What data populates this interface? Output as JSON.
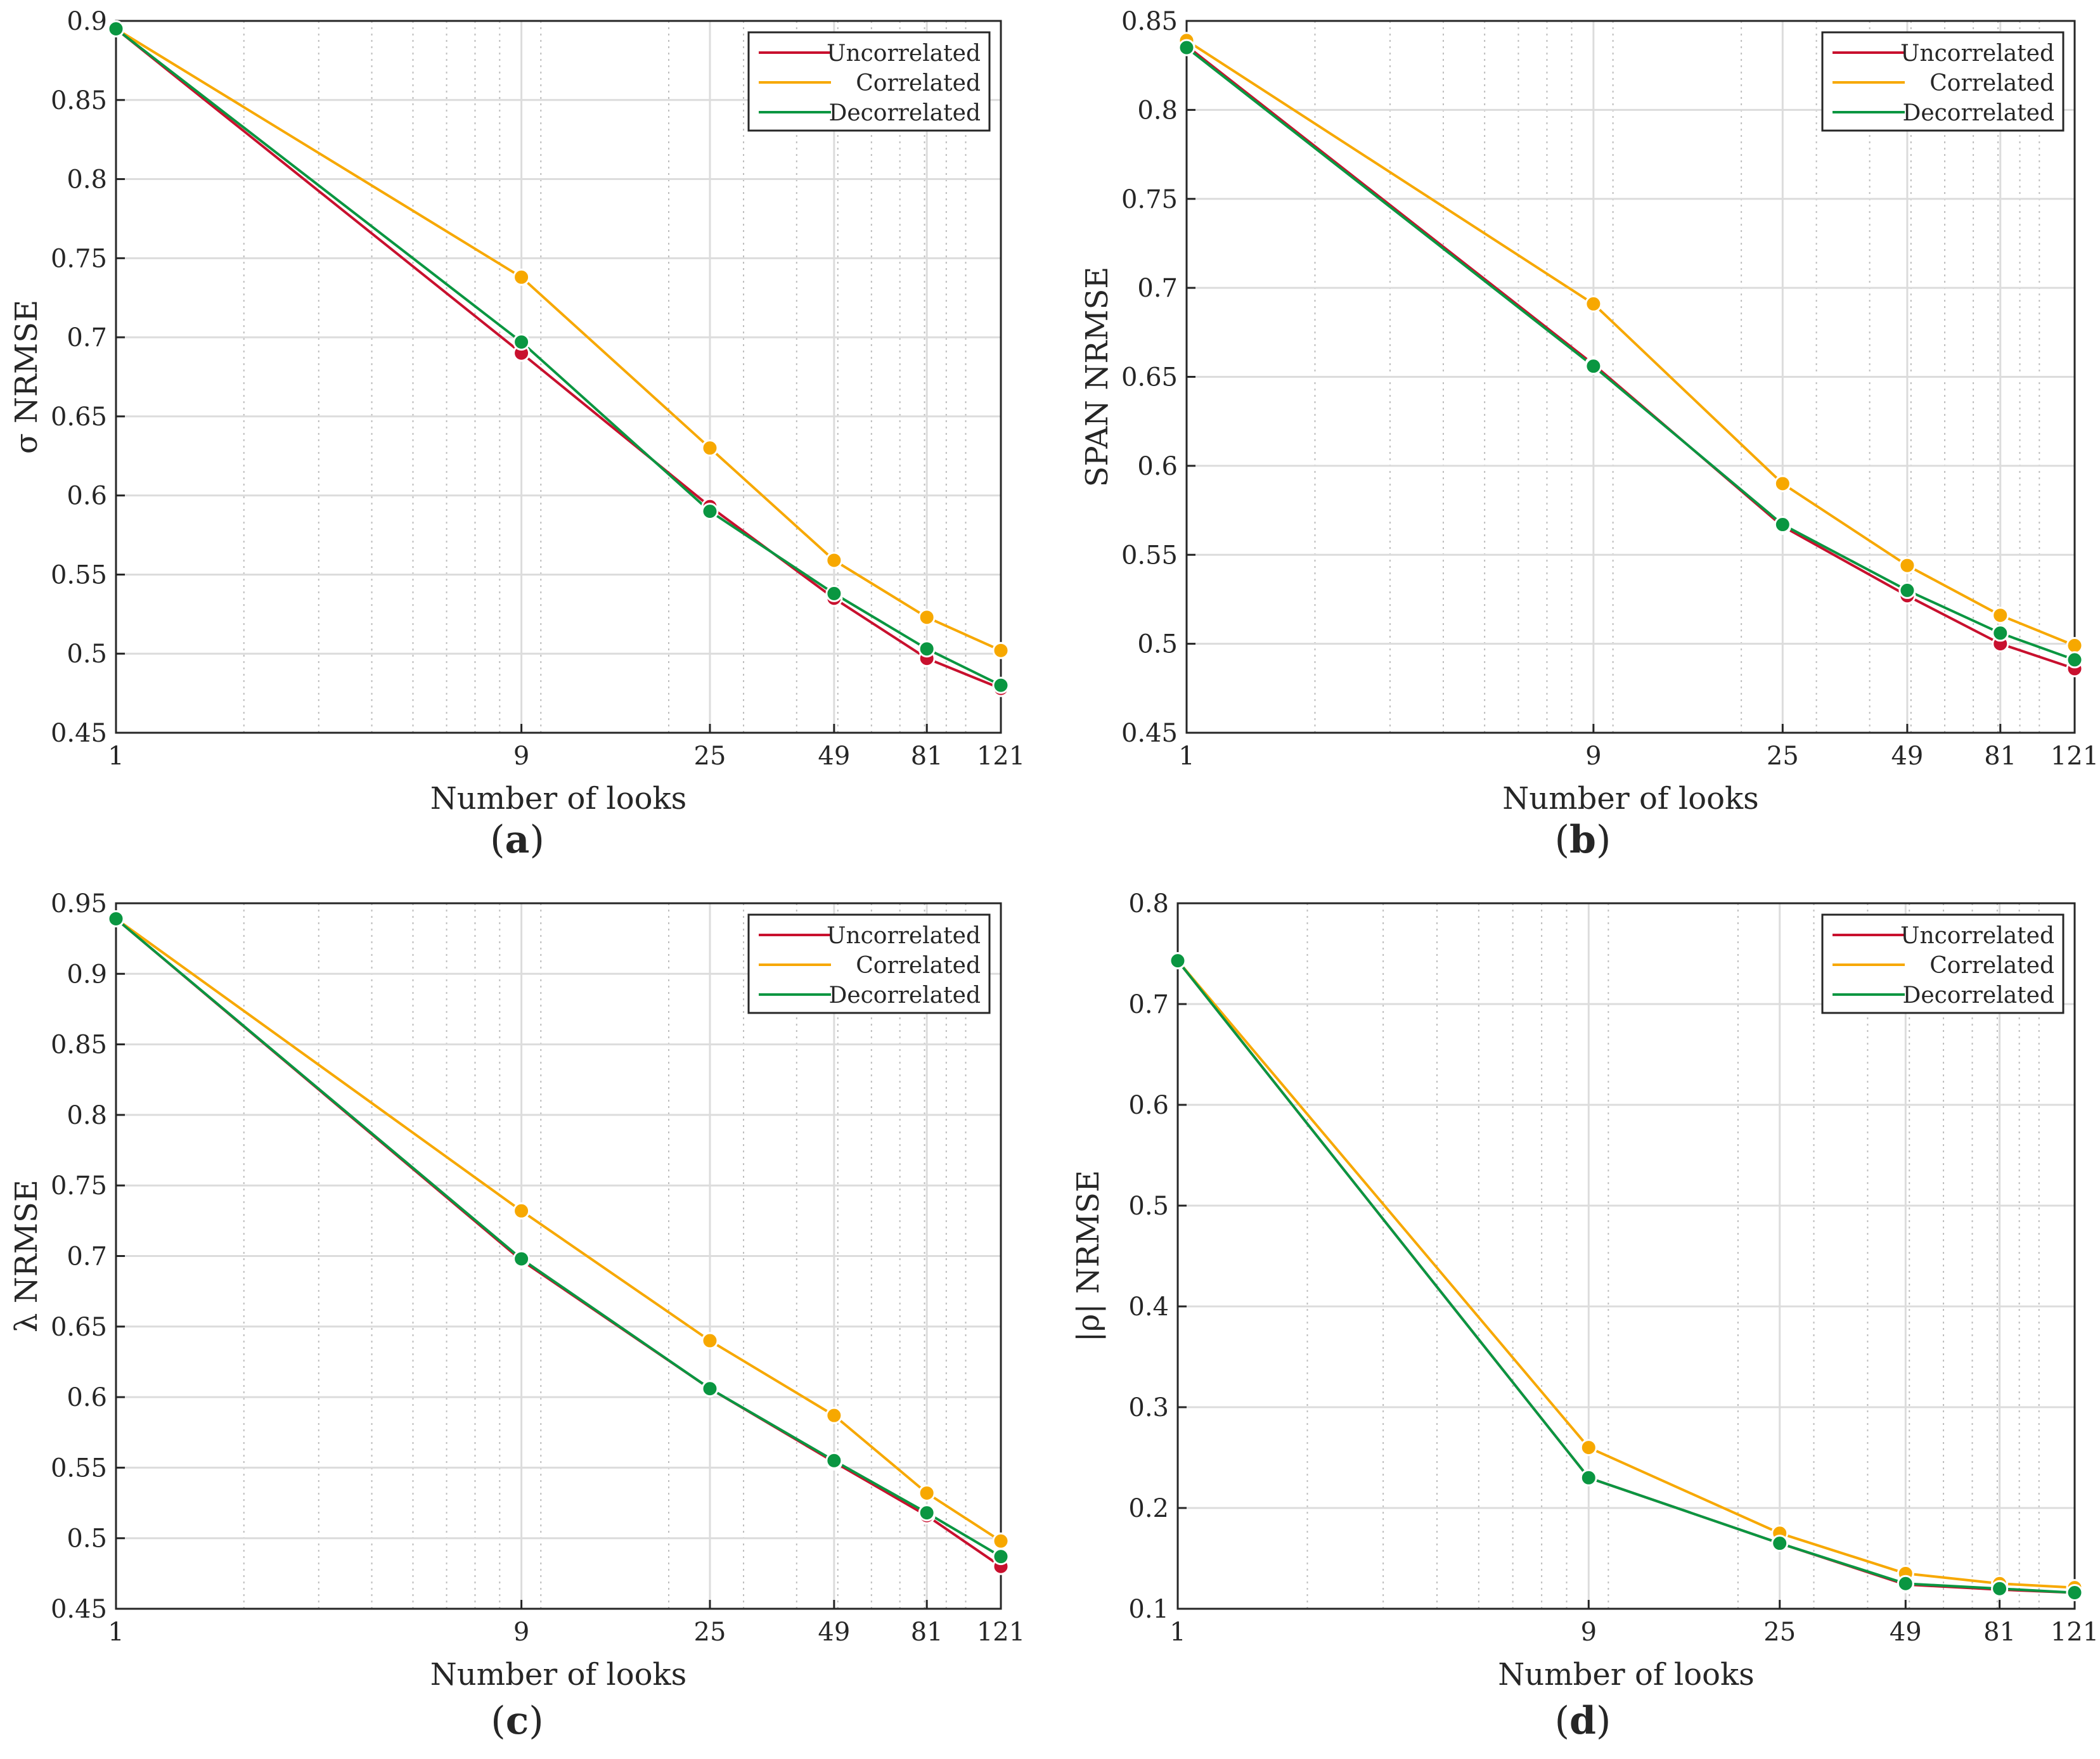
{
  "colors": {
    "uncorrelated": "#c8102e",
    "correlated": "#f7a800",
    "decorrelated": "#0a9641",
    "grid_major": "#dcdcdc",
    "grid_minor": "#bdbdbd",
    "axis": "#262626"
  },
  "chart_data": [
    {
      "type": "line",
      "panel": "a",
      "caption": "(a)",
      "caption_letter": "a",
      "xscale": "log",
      "xlabel": "Number of looks",
      "ylabel": "σ NRMSE",
      "xlim": [
        1,
        121
      ],
      "ylim": [
        0.45,
        0.9
      ],
      "xticks": [
        1,
        9,
        25,
        49,
        81,
        121
      ],
      "xtick_labels": [
        "1",
        "9",
        "25",
        "49",
        "81",
        "121"
      ],
      "yticks": [
        0.45,
        0.5,
        0.55,
        0.6,
        0.65,
        0.7,
        0.75,
        0.8,
        0.85,
        0.9
      ],
      "ytick_labels": [
        "0.45",
        "0.5",
        "0.55",
        "0.6",
        "0.65",
        "0.7",
        "0.75",
        "0.8",
        "0.85",
        "0.9"
      ],
      "grid": true,
      "legend_position": "top-right",
      "x": [
        1,
        9,
        25,
        49,
        81,
        121
      ],
      "series": [
        {
          "name": "Uncorrelated",
          "color_key": "uncorrelated",
          "values": [
            0.895,
            0.69,
            0.593,
            0.535,
            0.497,
            0.478
          ]
        },
        {
          "name": "Correlated",
          "color_key": "correlated",
          "values": [
            0.895,
            0.738,
            0.63,
            0.559,
            0.523,
            0.502
          ]
        },
        {
          "name": "Decorrelated",
          "color_key": "decorrelated",
          "values": [
            0.895,
            0.697,
            0.59,
            0.538,
            0.503,
            0.48
          ]
        }
      ]
    },
    {
      "type": "line",
      "panel": "b",
      "caption": "(b)",
      "caption_letter": "b",
      "xscale": "log",
      "xlabel": "Number of looks",
      "ylabel": "SPAN NRMSE",
      "xlim": [
        1,
        121
      ],
      "ylim": [
        0.45,
        0.85
      ],
      "xticks": [
        1,
        9,
        25,
        49,
        81,
        121
      ],
      "xtick_labels": [
        "1",
        "9",
        "25",
        "49",
        "81",
        "121"
      ],
      "yticks": [
        0.45,
        0.5,
        0.55,
        0.6,
        0.65,
        0.7,
        0.75,
        0.8,
        0.85
      ],
      "ytick_labels": [
        "0.45",
        "0.5",
        "0.55",
        "0.6",
        "0.65",
        "0.7",
        "0.75",
        "0.8",
        "0.85"
      ],
      "grid": true,
      "legend_position": "top-right",
      "x": [
        1,
        9,
        25,
        49,
        81,
        121
      ],
      "series": [
        {
          "name": "Uncorrelated",
          "color_key": "uncorrelated",
          "values": [
            0.836,
            0.657,
            0.566,
            0.527,
            0.5,
            0.486
          ]
        },
        {
          "name": "Correlated",
          "color_key": "correlated",
          "values": [
            0.839,
            0.691,
            0.59,
            0.544,
            0.516,
            0.499
          ]
        },
        {
          "name": "Decorrelated",
          "color_key": "decorrelated",
          "values": [
            0.835,
            0.656,
            0.567,
            0.53,
            0.506,
            0.491
          ]
        }
      ]
    },
    {
      "type": "line",
      "panel": "c",
      "caption": "(c)",
      "caption_letter": "c",
      "xscale": "log",
      "xlabel": "Number of looks",
      "ylabel": "λ NRMSE",
      "xlim": [
        1,
        121
      ],
      "ylim": [
        0.45,
        0.95
      ],
      "xticks": [
        1,
        9,
        25,
        49,
        81,
        121
      ],
      "xtick_labels": [
        "1",
        "9",
        "25",
        "49",
        "81",
        "121"
      ],
      "yticks": [
        0.45,
        0.5,
        0.55,
        0.6,
        0.65,
        0.7,
        0.75,
        0.8,
        0.85,
        0.9,
        0.95
      ],
      "ytick_labels": [
        "0.45",
        "0.5",
        "0.55",
        "0.6",
        "0.65",
        "0.7",
        "0.75",
        "0.8",
        "0.85",
        "0.9",
        "0.95"
      ],
      "grid": true,
      "legend_position": "top-right",
      "x": [
        1,
        9,
        25,
        49,
        81,
        121
      ],
      "series": [
        {
          "name": "Uncorrelated",
          "color_key": "uncorrelated",
          "values": [
            0.939,
            0.697,
            0.606,
            0.554,
            0.516,
            0.48
          ]
        },
        {
          "name": "Correlated",
          "color_key": "correlated",
          "values": [
            0.939,
            0.732,
            0.64,
            0.587,
            0.532,
            0.498
          ]
        },
        {
          "name": "Decorrelated",
          "color_key": "decorrelated",
          "values": [
            0.939,
            0.698,
            0.606,
            0.555,
            0.518,
            0.487
          ]
        }
      ]
    },
    {
      "type": "line",
      "panel": "d",
      "caption": "(d)",
      "caption_letter": "d",
      "xscale": "log",
      "xlabel": "Number of looks",
      "ylabel": "|ρ| NRMSE",
      "xlim": [
        1,
        121
      ],
      "ylim": [
        0.1,
        0.8
      ],
      "xticks": [
        1,
        9,
        25,
        49,
        81,
        121
      ],
      "xtick_labels": [
        "1",
        "9",
        "25",
        "49",
        "81",
        "121"
      ],
      "yticks": [
        0.1,
        0.2,
        0.3,
        0.4,
        0.5,
        0.6,
        0.7,
        0.8
      ],
      "ytick_labels": [
        "0.1",
        "0.2",
        "0.3",
        "0.4",
        "0.5",
        "0.6",
        "0.7",
        "0.8"
      ],
      "grid": true,
      "legend_position": "top-right",
      "x": [
        1,
        9,
        25,
        49,
        81,
        121
      ],
      "series": [
        {
          "name": "Uncorrelated",
          "color_key": "uncorrelated",
          "values": [
            0.743,
            0.23,
            0.165,
            0.124,
            0.119,
            0.116
          ]
        },
        {
          "name": "Correlated",
          "color_key": "correlated",
          "values": [
            0.743,
            0.26,
            0.175,
            0.135,
            0.125,
            0.121
          ]
        },
        {
          "name": "Decorrelated",
          "color_key": "decorrelated",
          "values": [
            0.743,
            0.23,
            0.165,
            0.125,
            0.12,
            0.116
          ]
        }
      ]
    }
  ]
}
